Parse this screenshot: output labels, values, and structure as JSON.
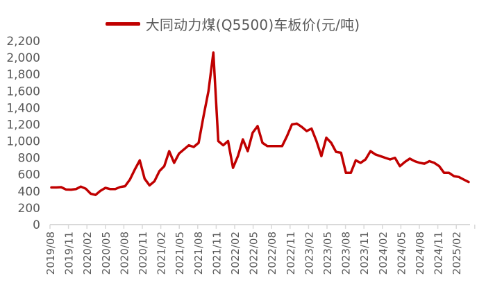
{
  "chart_data": {
    "type": "line",
    "title": "",
    "legend": [
      "大同动力煤(Q5500)车板价(元/吨)"
    ],
    "legend_position": "top",
    "xlabel": "",
    "ylabel": "",
    "ylim": [
      0,
      2200
    ],
    "yticks": [
      "0",
      "200",
      "400",
      "600",
      "800",
      "1,000",
      "1,200",
      "1,400",
      "1,600",
      "1,800",
      "2,000",
      "2,200"
    ],
    "grid": false,
    "categories": [
      "2019/08",
      "2019/11",
      "2020/02",
      "2020/05",
      "2020/08",
      "2020/11",
      "2021/02",
      "2021/05",
      "2021/08",
      "2021/11",
      "2022/02",
      "2022/05",
      "2022/08",
      "2022/11",
      "2023/02",
      "2023/05",
      "2023/08",
      "2023/11",
      "2024/02",
      "2024/05",
      "2024/08",
      "2024/11",
      "2025/02"
    ],
    "series": [
      {
        "name": "大同动力煤(Q5500)车板价(元/吨)",
        "color": "#C00000",
        "points": [
          [
            "2019/08",
            445
          ],
          [
            "2019/09",
            445
          ],
          [
            "2019/10",
            448
          ],
          [
            "2019/11",
            420
          ],
          [
            "2019/12",
            418
          ],
          [
            "2020/01",
            425
          ],
          [
            "2020/02",
            455
          ],
          [
            "2020/03",
            430
          ],
          [
            "2020/04",
            370
          ],
          [
            "2020/05",
            355
          ],
          [
            "2020/06",
            405
          ],
          [
            "2020/07",
            440
          ],
          [
            "2020/08",
            425
          ],
          [
            "2020/09",
            425
          ],
          [
            "2020/10",
            450
          ],
          [
            "2020/11",
            460
          ],
          [
            "2020/12",
            540
          ],
          [
            "2021/01",
            660
          ],
          [
            "2021/01b",
            770
          ],
          [
            "2021/02",
            550
          ],
          [
            "2021/02b",
            470
          ],
          [
            "2021/03",
            520
          ],
          [
            "2021/04",
            640
          ],
          [
            "2021/04b",
            700
          ],
          [
            "2021/05",
            880
          ],
          [
            "2021/05b",
            740
          ],
          [
            "2021/06",
            850
          ],
          [
            "2021/07",
            900
          ],
          [
            "2021/07b",
            950
          ],
          [
            "2021/08",
            930
          ],
          [
            "2021/08b",
            980
          ],
          [
            "2021/09",
            1300
          ],
          [
            "2021/10",
            1600
          ],
          [
            "2021/10b",
            2060
          ],
          [
            "2021/10c",
            1000
          ],
          [
            "2021/11",
            950
          ],
          [
            "2021/11b",
            1000
          ],
          [
            "2021/12",
            680
          ],
          [
            "2021/12b",
            820
          ],
          [
            "2022/01",
            1020
          ],
          [
            "2022/01b",
            880
          ],
          [
            "2022/02",
            1100
          ],
          [
            "2022/02b",
            1180
          ],
          [
            "2022/03",
            980
          ],
          [
            "2022/04",
            940
          ],
          [
            "2022/05",
            940
          ],
          [
            "2022/06",
            940
          ],
          [
            "2022/07",
            940
          ],
          [
            "2022/08",
            1060
          ],
          [
            "2022/09",
            1200
          ],
          [
            "2022/10",
            1210
          ],
          [
            "2022/11",
            1170
          ],
          [
            "2022/11b",
            1120
          ],
          [
            "2022/12",
            1150
          ],
          [
            "2023/01",
            1000
          ],
          [
            "2023/01b",
            820
          ],
          [
            "2023/01c",
            1040
          ],
          [
            "2023/02",
            980
          ],
          [
            "2023/03",
            870
          ],
          [
            "2023/04",
            860
          ],
          [
            "2023/05",
            620
          ],
          [
            "2023/05b",
            620
          ],
          [
            "2023/06",
            770
          ],
          [
            "2023/07",
            740
          ],
          [
            "2023/08",
            780
          ],
          [
            "2023/09",
            880
          ],
          [
            "2023/10",
            840
          ],
          [
            "2023/11",
            820
          ],
          [
            "2023/12",
            800
          ],
          [
            "2024/01",
            780
          ],
          [
            "2024/02",
            800
          ],
          [
            "2024/03",
            700
          ],
          [
            "2024/04",
            750
          ],
          [
            "2024/05",
            790
          ],
          [
            "2024/06",
            760
          ],
          [
            "2024/07",
            740
          ],
          [
            "2024/08",
            730
          ],
          [
            "2024/09",
            760
          ],
          [
            "2024/10",
            740
          ],
          [
            "2024/11",
            700
          ],
          [
            "2024/12",
            620
          ],
          [
            "2025/01",
            620
          ],
          [
            "2025/02",
            580
          ],
          [
            "2025/03",
            570
          ],
          [
            "2025/04",
            540
          ],
          [
            "2025/04b",
            510
          ]
        ]
      }
    ]
  },
  "legend": {
    "label": "大同动力煤(Q5500)车板价(元/吨)"
  }
}
